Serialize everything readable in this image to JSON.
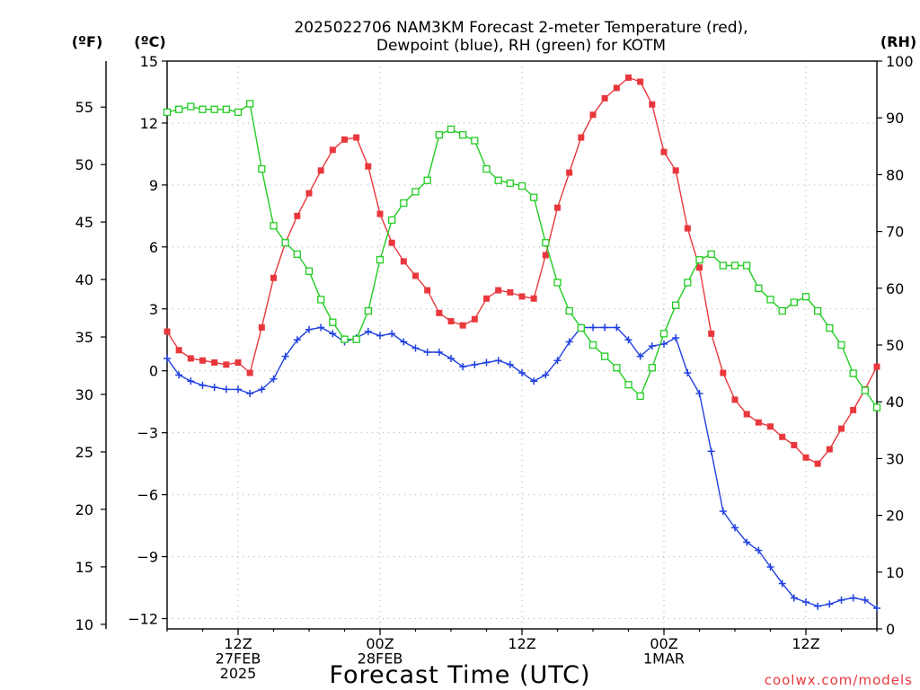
{
  "chart_data": {
    "type": "line",
    "title": "2025022706 NAM3KM Forecast 2-meter Temperature (red),",
    "subtitle": "Dewpoint (blue), RH (green) for KOTM",
    "xlabel": "Forecast Time (UTC)",
    "source_label": "coolwx.com/models",
    "x_range_hours": [
      0,
      60
    ],
    "x_ticks": [
      {
        "hour": 6,
        "lines": [
          "12Z",
          "27FEB",
          "2025"
        ]
      },
      {
        "hour": 18,
        "lines": [
          "00Z",
          "28FEB"
        ]
      },
      {
        "hour": 30,
        "lines": [
          "12Z"
        ]
      },
      {
        "hour": 42,
        "lines": [
          "00Z",
          "1MAR"
        ]
      },
      {
        "hour": 54,
        "lines": [
          "12Z"
        ]
      }
    ],
    "axes": {
      "left_f": {
        "unit_label": "(ºF)",
        "ylim": [
          9.6,
          59
        ],
        "ticks": [
          10,
          15,
          20,
          25,
          30,
          35,
          40,
          45,
          50,
          55
        ]
      },
      "left_c": {
        "unit_label": "(ºC)",
        "ylim": [
          -12.5,
          15
        ],
        "ticks": [
          15,
          12,
          9,
          6,
          3,
          0,
          -3,
          -6,
          -9,
          -12
        ]
      },
      "right_rh": {
        "unit_label": "(RH)",
        "ylim": [
          0,
          100
        ],
        "ticks": [
          100,
          90,
          80,
          70,
          60,
          50,
          40,
          30,
          20,
          10,
          0
        ]
      }
    },
    "grid": true,
    "x": [
      0,
      1,
      2,
      3,
      4,
      5,
      6,
      7,
      8,
      9,
      10,
      11,
      12,
      13,
      14,
      15,
      16,
      17,
      18,
      19,
      20,
      21,
      22,
      23,
      24,
      25,
      26,
      27,
      28,
      29,
      30,
      31,
      32,
      33,
      34,
      35,
      36,
      37,
      38,
      39,
      40,
      41,
      42,
      43,
      44,
      45,
      46,
      47,
      48,
      49,
      50,
      51,
      52,
      53,
      54,
      55,
      56,
      57,
      58,
      59,
      60
    ],
    "series": [
      {
        "name": "Temperature",
        "color": "#e8383d",
        "marker": "filled-square",
        "axis": "left_c",
        "values": [
          1.9,
          1.0,
          0.6,
          0.5,
          0.4,
          0.3,
          0.4,
          -0.1,
          2.1,
          4.5,
          6.2,
          7.5,
          8.6,
          9.7,
          10.7,
          11.2,
          11.3,
          9.9,
          7.6,
          6.2,
          5.3,
          4.6,
          3.9,
          2.8,
          2.4,
          2.2,
          2.5,
          3.5,
          3.9,
          3.8,
          3.6,
          3.5,
          5.6,
          7.9,
          9.6,
          11.3,
          12.4,
          13.2,
          13.7,
          14.2,
          14.0,
          12.9,
          10.6,
          9.7,
          6.9,
          5.0,
          1.8,
          -0.1,
          -1.4,
          -2.1,
          -2.5,
          -2.7,
          -3.2,
          -3.6,
          -4.2,
          -4.5,
          -3.8,
          -2.8,
          -1.9,
          -0.9,
          0.2
        ]
      },
      {
        "name": "Dewpoint",
        "color": "#2040e0",
        "marker": "plus",
        "axis": "left_c",
        "values": [
          0.6,
          -0.2,
          -0.5,
          -0.7,
          -0.8,
          -0.9,
          -0.9,
          -1.1,
          -0.9,
          -0.4,
          0.7,
          1.5,
          2.0,
          2.1,
          1.8,
          1.4,
          1.6,
          1.9,
          1.7,
          1.8,
          1.4,
          1.1,
          0.9,
          0.9,
          0.6,
          0.2,
          0.3,
          0.4,
          0.5,
          0.3,
          -0.1,
          -0.5,
          -0.2,
          0.5,
          1.4,
          2.1,
          2.1,
          2.1,
          2.1,
          1.5,
          0.7,
          1.2,
          1.3,
          1.6,
          -0.1,
          -1.1,
          -3.9,
          -6.8,
          -7.6,
          -8.3,
          -8.7,
          -9.5,
          -10.3,
          -11.0,
          -11.2,
          -11.4,
          -11.3,
          -11.1,
          -11.0,
          -11.1,
          -11.5
        ]
      },
      {
        "name": "RH",
        "color": "#22cc22",
        "marker": "open-square",
        "axis": "right_rh",
        "values": [
          91,
          91.5,
          92,
          91.5,
          91.5,
          91.5,
          91,
          92.5,
          81,
          71,
          68,
          66,
          63,
          58,
          54,
          51,
          51,
          56,
          65,
          72,
          75,
          77,
          79,
          87,
          88,
          87,
          86,
          81,
          79,
          78.5,
          78,
          76,
          68,
          61,
          56,
          53,
          50,
          48,
          46,
          43,
          41,
          46,
          52,
          57,
          61,
          65,
          66,
          64,
          64,
          64,
          60,
          58,
          56,
          57.5,
          58.5,
          56,
          53,
          50,
          45,
          42,
          39
        ]
      }
    ]
  }
}
